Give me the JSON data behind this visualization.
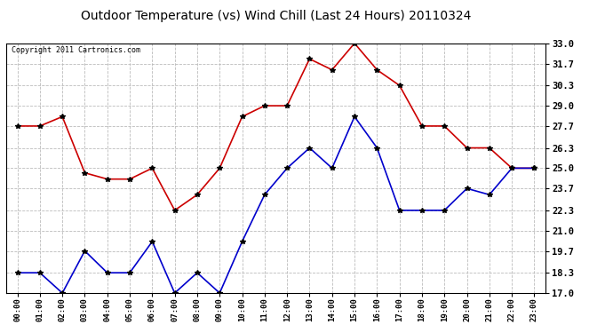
{
  "title": "Outdoor Temperature (vs) Wind Chill (Last 24 Hours) 20110324",
  "copyright": "Copyright 2011 Cartronics.com",
  "hours": [
    "00:00",
    "01:00",
    "02:00",
    "03:00",
    "04:00",
    "05:00",
    "06:00",
    "07:00",
    "08:00",
    "09:00",
    "10:00",
    "11:00",
    "12:00",
    "13:00",
    "14:00",
    "15:00",
    "16:00",
    "17:00",
    "18:00",
    "19:00",
    "20:00",
    "21:00",
    "22:00",
    "23:00"
  ],
  "temp": [
    27.7,
    27.7,
    28.3,
    24.7,
    24.3,
    24.3,
    25.0,
    22.3,
    23.3,
    25.0,
    28.3,
    29.0,
    29.0,
    32.0,
    31.3,
    33.0,
    31.3,
    30.3,
    27.7,
    27.7,
    26.3,
    26.3,
    25.0,
    25.0
  ],
  "windchill": [
    18.3,
    18.3,
    17.0,
    19.7,
    18.3,
    18.3,
    20.3,
    17.0,
    18.3,
    17.0,
    20.3,
    23.3,
    25.0,
    26.3,
    25.0,
    28.3,
    26.3,
    22.3,
    22.3,
    22.3,
    23.7,
    23.3,
    25.0,
    25.0
  ],
  "temp_color": "#cc0000",
  "windchill_color": "#0000cc",
  "marker": "*",
  "marker_color": "#000000",
  "marker_size": 4,
  "line_width": 1.2,
  "ylim": [
    17.0,
    33.0
  ],
  "yticks": [
    17.0,
    18.3,
    19.7,
    21.0,
    22.3,
    23.7,
    25.0,
    26.3,
    27.7,
    29.0,
    30.3,
    31.7,
    33.0
  ],
  "grid_color": "#bbbbbb",
  "grid_style": "--",
  "bg_color": "#ffffff",
  "plot_bg_color": "#ffffff",
  "title_fontsize": 10,
  "copyright_fontsize": 6,
  "tick_fontsize": 6.5,
  "ytick_fontsize": 7.5
}
